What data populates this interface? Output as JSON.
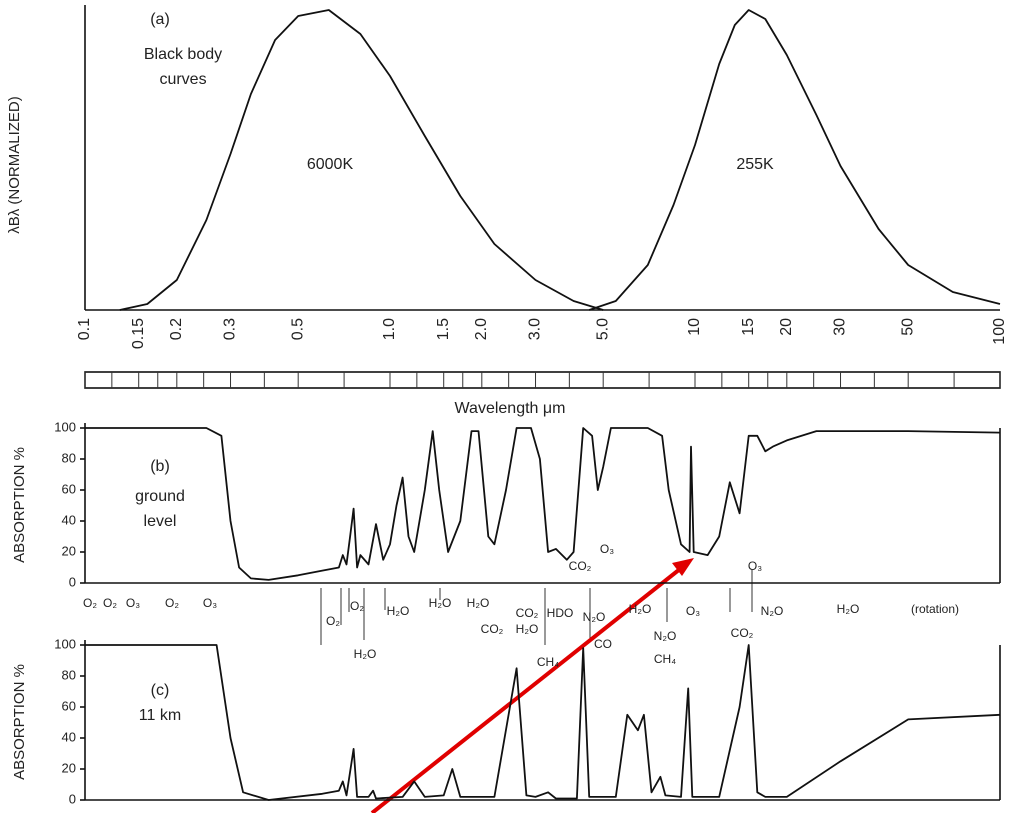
{
  "chart_data": [
    {
      "type": "line",
      "ylabel": "λBλ (NORMALIZED)",
      "annotations": [
        "(a)",
        "Black body",
        "curves"
      ],
      "xscale": "log",
      "xlim": [
        0.1,
        100
      ],
      "ylim": [
        0,
        1
      ],
      "xticks": [
        0.1,
        0.15,
        0.2,
        0.3,
        0.5,
        {
          "value": 1,
          "label": "1.0"
        },
        1.5,
        {
          "value": 2,
          "label": "2.0"
        },
        {
          "value": 3,
          "label": "3.0"
        },
        {
          "value": 5,
          "label": "5.0"
        },
        10,
        15,
        20,
        30,
        50,
        100
      ],
      "xlabel": "Wavelength μm",
      "series": [
        {
          "name": "6000K",
          "color": "#111111",
          "x": [
            0.13,
            0.16,
            0.2,
            0.25,
            0.3,
            0.35,
            0.42,
            0.5,
            0.63,
            0.8,
            1.0,
            1.3,
            1.7,
            2.2,
            3.0,
            4.0,
            5.0
          ],
          "values": [
            0,
            0.02,
            0.1,
            0.3,
            0.52,
            0.72,
            0.9,
            0.98,
            1.0,
            0.92,
            0.78,
            0.58,
            0.38,
            0.22,
            0.1,
            0.03,
            0
          ]
        },
        {
          "name": "255K",
          "color": "#111111",
          "x": [
            4.5,
            5.5,
            7,
            8.5,
            10,
            12,
            13.5,
            15,
            17,
            20,
            25,
            30,
            40,
            50,
            70,
            100
          ],
          "values": [
            0,
            0.03,
            0.15,
            0.35,
            0.55,
            0.82,
            0.95,
            1.0,
            0.97,
            0.85,
            0.65,
            0.48,
            0.27,
            0.15,
            0.06,
            0.02
          ]
        }
      ]
    },
    {
      "type": "line",
      "ylabel": "ABSORPTION %",
      "annotations": [
        "(b)",
        "ground",
        "level"
      ],
      "xscale": "log",
      "xlim": [
        0.1,
        100
      ],
      "ylim": [
        0,
        100
      ],
      "yticks": [
        0,
        20,
        40,
        60,
        80,
        100
      ],
      "gas_labels": [
        "O₂",
        "O₂",
        "O₃",
        "O₂",
        "O₃",
        "O₂",
        "O₂",
        "H₂O",
        "H₂O",
        "H₂O",
        "H₂O",
        "CO₂",
        "H₂O",
        "CO₂",
        "HDO",
        "N₂O",
        "CO",
        "H₂O",
        "O₃",
        "N₂O",
        "CO₂",
        "N₂O",
        "CH₄",
        "CH₄",
        "H₂O",
        "(rotation)",
        "CO₂",
        "O₃",
        "O₃"
      ],
      "series": [
        {
          "name": "ground level absorption",
          "color": "#111111",
          "x": [
            0.1,
            0.25,
            0.28,
            0.3,
            0.32,
            0.35,
            0.4,
            0.5,
            0.6,
            0.68,
            0.7,
            0.72,
            0.74,
            0.76,
            0.78,
            0.8,
            0.85,
            0.9,
            0.95,
            1.0,
            1.05,
            1.1,
            1.15,
            1.2,
            1.3,
            1.38,
            1.45,
            1.55,
            1.7,
            1.85,
            1.95,
            2.1,
            2.2,
            2.4,
            2.6,
            2.9,
            3.1,
            3.3,
            3.5,
            3.8,
            4.0,
            4.3,
            4.6,
            4.8,
            5.0,
            5.3,
            6,
            7,
            7.8,
            8.2,
            9,
            9.6,
            9.7,
            9.9,
            11,
            12,
            13,
            14,
            15,
            16,
            17,
            18,
            20,
            25,
            50,
            100
          ],
          "values": [
            100,
            100,
            95,
            40,
            10,
            3,
            2,
            5,
            8,
            10,
            18,
            12,
            30,
            48,
            10,
            18,
            12,
            38,
            15,
            25,
            50,
            68,
            30,
            20,
            60,
            98,
            60,
            20,
            40,
            98,
            98,
            30,
            25,
            60,
            100,
            100,
            80,
            20,
            22,
            15,
            20,
            100,
            95,
            60,
            75,
            100,
            100,
            100,
            95,
            60,
            25,
            20,
            88,
            20,
            18,
            30,
            65,
            45,
            95,
            95,
            85,
            88,
            92,
            98,
            98,
            97
          ]
        }
      ]
    },
    {
      "type": "line",
      "ylabel": "ABSORPTION %",
      "annotations": [
        "(c)",
        "11 km"
      ],
      "xscale": "log",
      "xlim": [
        0.1,
        100
      ],
      "ylim": [
        0,
        100
      ],
      "yticks": [
        0,
        20,
        40,
        60,
        80,
        100
      ],
      "series": [
        {
          "name": "11 km absorption",
          "color": "#111111",
          "x": [
            0.1,
            0.27,
            0.3,
            0.33,
            0.4,
            0.6,
            0.68,
            0.7,
            0.72,
            0.76,
            0.78,
            0.85,
            0.88,
            0.9,
            1.1,
            1.2,
            1.3,
            1.5,
            1.6,
            1.7,
            2.2,
            2.6,
            2.8,
            3.0,
            3.3,
            3.5,
            4.1,
            4.3,
            4.5,
            5.5,
            6.0,
            6.5,
            6.8,
            7.2,
            7.7,
            8.0,
            9.0,
            9.5,
            9.8,
            12,
            14,
            15,
            16,
            17,
            20,
            30,
            50,
            100
          ],
          "values": [
            100,
            100,
            40,
            5,
            0,
            4,
            6,
            12,
            3,
            33,
            2,
            2,
            6,
            1,
            2,
            12,
            2,
            3,
            20,
            2,
            2,
            85,
            3,
            2,
            5,
            1,
            1,
            98,
            2,
            2,
            55,
            45,
            55,
            5,
            15,
            3,
            2,
            72,
            2,
            2,
            60,
            100,
            5,
            2,
            2,
            25,
            52,
            55
          ]
        }
      ]
    }
  ]
}
